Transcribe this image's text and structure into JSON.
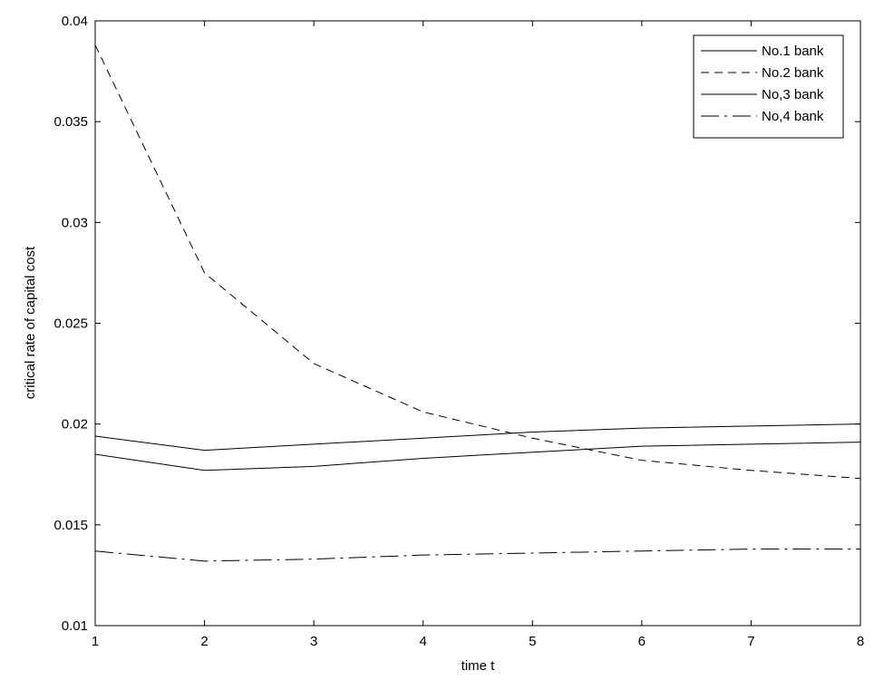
{
  "chart_data": {
    "type": "line",
    "title": "",
    "xlabel": "time t",
    "ylabel": "critical rate of capital cost",
    "xlim": [
      1,
      8
    ],
    "ylim": [
      0.01,
      0.04
    ],
    "xticks": [
      1,
      2,
      3,
      4,
      5,
      6,
      7,
      8
    ],
    "yticks": [
      0.01,
      0.015,
      0.02,
      0.025,
      0.03,
      0.035,
      0.04
    ],
    "ytick_labels": [
      "0.01",
      "0.015",
      "0.02",
      "0.025",
      "0.03",
      "0.035",
      "0.04"
    ],
    "grid": false,
    "legend_position": "top-right",
    "x": [
      1,
      2,
      3,
      4,
      5,
      6,
      7,
      8
    ],
    "series": [
      {
        "name": "No.1 bank",
        "style": "solid",
        "values": [
          0.0194,
          0.0187,
          0.019,
          0.0193,
          0.0196,
          0.0198,
          0.0199,
          0.02
        ]
      },
      {
        "name": "No.2 bank",
        "style": "dashed",
        "values": [
          0.0388,
          0.0275,
          0.023,
          0.0206,
          0.0193,
          0.0182,
          0.0177,
          0.0173
        ]
      },
      {
        "name": "No,3 bank",
        "style": "solid",
        "values": [
          0.0185,
          0.0177,
          0.0179,
          0.0183,
          0.0186,
          0.0189,
          0.019,
          0.0191
        ]
      },
      {
        "name": "No,4 bank",
        "style": "dash-dot",
        "values": [
          0.0137,
          0.0132,
          0.0133,
          0.0135,
          0.0136,
          0.0137,
          0.0138,
          0.0138
        ]
      }
    ]
  }
}
